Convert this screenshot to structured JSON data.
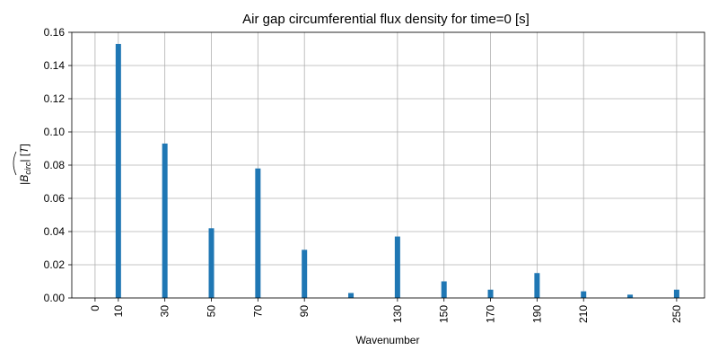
{
  "chart_data": {
    "type": "bar",
    "title": "Air gap circumferential flux density for time=0 [s]",
    "xlabel": "Wavenumber",
    "ylabel": "|B̂circ| [T]",
    "x": [
      10,
      30,
      50,
      70,
      90,
      110,
      130,
      150,
      170,
      190,
      210,
      230,
      250
    ],
    "values": [
      0.153,
      0.093,
      0.042,
      0.078,
      0.029,
      0.003,
      0.037,
      0.01,
      0.005,
      0.015,
      0.004,
      0.002,
      0.005
    ],
    "x_ticks": [
      0,
      10,
      30,
      50,
      70,
      90,
      130,
      150,
      170,
      190,
      210,
      250
    ],
    "y_ticks": [
      "0.00",
      "0.02",
      "0.04",
      "0.06",
      "0.08",
      "0.10",
      "0.12",
      "0.14",
      "0.16"
    ],
    "xlim": [
      -10,
      262
    ],
    "ylim": [
      0,
      0.16
    ],
    "bar_color": "#1f77b4",
    "grid": true
  }
}
